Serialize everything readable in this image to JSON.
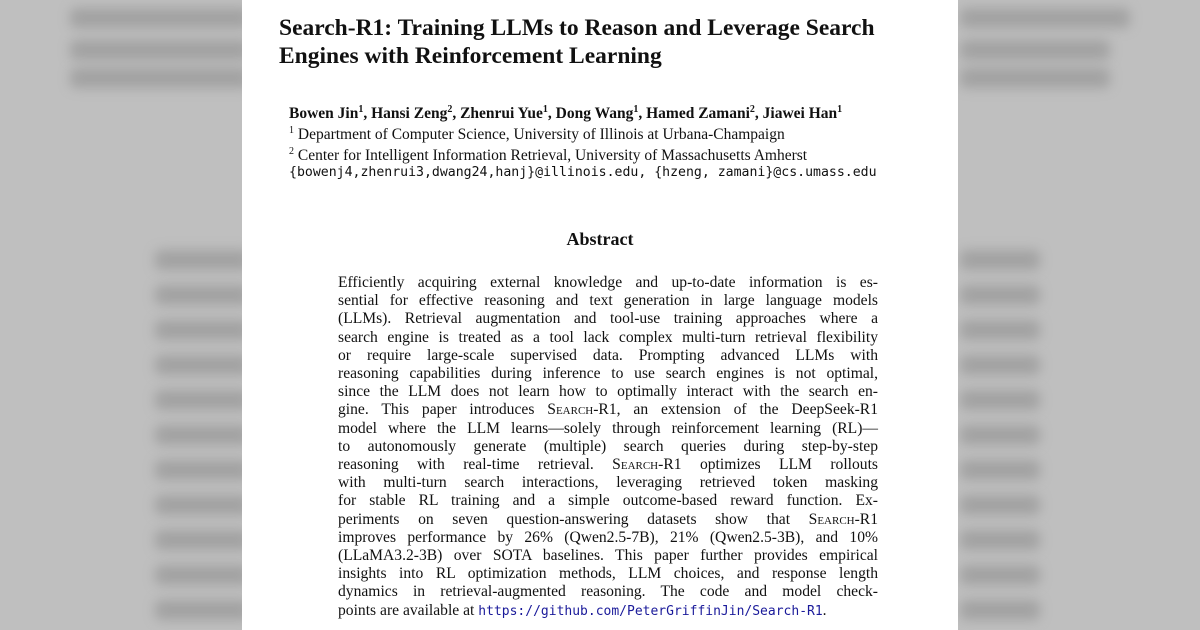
{
  "paper": {
    "title": "Search-R1: Training LLMs to Reason and Leverage Search Engines with Reinforcement Learning",
    "authors": [
      {
        "name": "Bowen Jin",
        "aff": "1"
      },
      {
        "name": "Hansi Zeng",
        "aff": "2"
      },
      {
        "name": "Zhenrui Yue",
        "aff": "1"
      },
      {
        "name": "Dong Wang",
        "aff": "1"
      },
      {
        "name": "Hamed Zamani",
        "aff": "2"
      },
      {
        "name": "Jiawei Han",
        "aff": "1"
      }
    ],
    "affiliations": [
      {
        "num": "1",
        "text": "Department of Computer Science, University of Illinois at Urbana-Champaign"
      },
      {
        "num": "2",
        "text": "Center for Intelligent Information Retrieval, University of Massachusetts Amherst"
      }
    ],
    "emails": "{bowenj4,zhenrui3,dwang24,hanj}@illinois.edu, {hzeng, zamani}@cs.umass.edu",
    "abstract_heading": "Abstract",
    "abstract_lines": [
      [
        {
          "t": "Efficiently acquiring external knowledge and up-to-date information is es-"
        }
      ],
      [
        {
          "t": "sential for effective reasoning and text generation in large language models"
        }
      ],
      [
        {
          "t": "(LLMs). Retrieval augmentation and tool-use training approaches where a"
        }
      ],
      [
        {
          "t": "search engine is treated as a tool lack complex multi-turn retrieval flexibility"
        }
      ],
      [
        {
          "t": "or require large-scale supervised data.  Prompting advanced LLMs with"
        }
      ],
      [
        {
          "t": "reasoning capabilities during inference to use search engines is not optimal,"
        }
      ],
      [
        {
          "t": "since the LLM does not learn how to optimally interact with the search en-"
        }
      ],
      [
        {
          "t": "gine. This paper introduces "
        },
        {
          "t": "Search",
          "sc": true
        },
        {
          "t": "-R1, an extension of the DeepSeek-R1"
        }
      ],
      [
        {
          "t": "model where the LLM learns—solely through reinforcement learning (RL)—"
        }
      ],
      [
        {
          "t": "to autonomously generate (multiple) search queries during step-by-step"
        }
      ],
      [
        {
          "t": "reasoning with real-time retrieval.  "
        },
        {
          "t": "Search",
          "sc": true
        },
        {
          "t": "-R1 optimizes LLM rollouts"
        }
      ],
      [
        {
          "t": "with multi-turn search interactions, leveraging retrieved token masking"
        }
      ],
      [
        {
          "t": "for stable RL training and a simple outcome-based reward function. Ex-"
        }
      ],
      [
        {
          "t": "periments on seven question-answering datasets show that "
        },
        {
          "t": "Search",
          "sc": true
        },
        {
          "t": "-R1"
        }
      ],
      [
        {
          "t": "improves performance by 26% (Qwen2.5-7B), 21% (Qwen2.5-3B), and 10%"
        }
      ],
      [
        {
          "t": "(LLaMA3.2-3B) over SOTA baselines. This paper further provides empirical"
        }
      ],
      [
        {
          "t": "insights into RL optimization methods, LLM choices, and response length"
        }
      ],
      [
        {
          "t": "dynamics in retrieval-augmented reasoning. The code and model check-"
        }
      ],
      [
        {
          "t": "points are available at "
        },
        {
          "t": "https://github.com/PeterGriffinJin/Search-R1",
          "link": true
        },
        {
          "t": "."
        }
      ]
    ]
  }
}
